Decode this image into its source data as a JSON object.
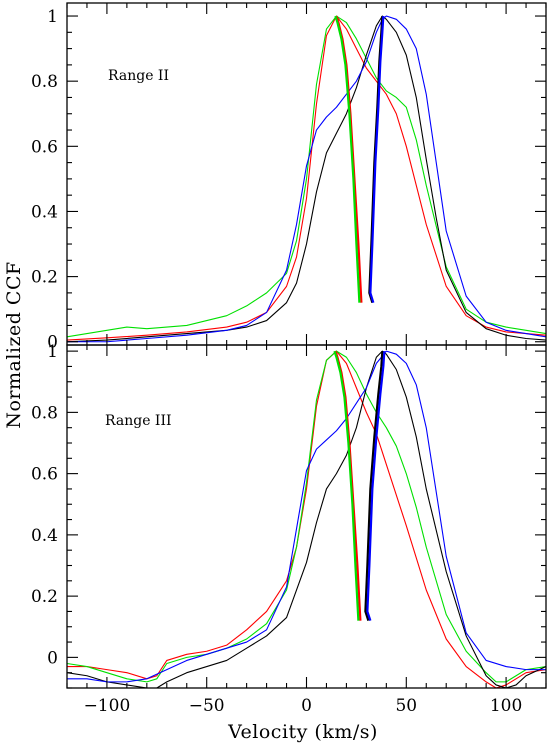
{
  "figure": {
    "xlabel": "Velocity (km/s)",
    "ylabel": "Normalized CCF"
  },
  "chart_data": [
    {
      "type": "line",
      "annotation": "Range II",
      "xlim": [
        -120,
        120
      ],
      "ylim": [
        -0.01,
        1.04
      ],
      "xticks": [
        -100,
        -50,
        0,
        50,
        100
      ],
      "xtick_labels": [
        "−100",
        "−50",
        "0",
        "50",
        "100"
      ],
      "yticks": [
        0,
        0.2,
        0.4,
        0.6,
        0.8,
        1
      ],
      "ytick_labels": [
        "0",
        "0.2",
        "0.4",
        "0.6",
        "0.8",
        "1"
      ],
      "colors": {
        "red": "#ff0000",
        "green": "#00e000",
        "black": "#000000",
        "blue": "#0000ff"
      },
      "series": [
        {
          "color": "red",
          "kind": "ccf",
          "x": [
            -120,
            -100,
            -80,
            -60,
            -40,
            -30,
            -20,
            -10,
            -5,
            0,
            5,
            10,
            15,
            20,
            25,
            30,
            35,
            40,
            45,
            50,
            55,
            60,
            70,
            80,
            90,
            100,
            110,
            120
          ],
          "y": [
            0.005,
            0.012,
            0.02,
            0.03,
            0.045,
            0.06,
            0.09,
            0.17,
            0.26,
            0.44,
            0.73,
            0.94,
            1.0,
            0.96,
            0.9,
            0.84,
            0.8,
            0.76,
            0.7,
            0.6,
            0.48,
            0.36,
            0.17,
            0.08,
            0.045,
            0.03,
            0.025,
            0.02
          ]
        },
        {
          "color": "green",
          "kind": "ccf",
          "x": [
            -120,
            -100,
            -90,
            -80,
            -60,
            -40,
            -30,
            -20,
            -10,
            -5,
            0,
            5,
            10,
            15,
            20,
            25,
            30,
            35,
            40,
            45,
            50,
            55,
            60,
            70,
            80,
            90,
            100,
            110,
            120
          ],
          "y": [
            0.015,
            0.035,
            0.045,
            0.04,
            0.05,
            0.08,
            0.11,
            0.15,
            0.21,
            0.31,
            0.5,
            0.79,
            0.96,
            1.0,
            0.98,
            0.93,
            0.87,
            0.81,
            0.77,
            0.75,
            0.72,
            0.62,
            0.48,
            0.23,
            0.1,
            0.06,
            0.045,
            0.035,
            0.025
          ]
        },
        {
          "color": "black",
          "kind": "ccf",
          "x": [
            -120,
            -100,
            -80,
            -60,
            -40,
            -30,
            -20,
            -10,
            -5,
            0,
            5,
            10,
            15,
            20,
            25,
            30,
            35,
            38,
            40,
            45,
            50,
            55,
            60,
            65,
            70,
            80,
            90,
            100,
            110,
            120
          ],
          "y": [
            0.0,
            0.005,
            0.015,
            0.025,
            0.035,
            0.045,
            0.065,
            0.12,
            0.18,
            0.3,
            0.46,
            0.58,
            0.64,
            0.7,
            0.78,
            0.88,
            0.97,
            1.0,
            0.99,
            0.95,
            0.88,
            0.75,
            0.56,
            0.38,
            0.22,
            0.09,
            0.04,
            0.02,
            0.01,
            0.005
          ]
        },
        {
          "color": "blue",
          "kind": "ccf",
          "x": [
            -120,
            -100,
            -80,
            -60,
            -40,
            -30,
            -20,
            -10,
            -5,
            0,
            5,
            10,
            15,
            20,
            25,
            30,
            35,
            38,
            40,
            45,
            50,
            55,
            60,
            65,
            70,
            80,
            90,
            100,
            110,
            120
          ],
          "y": [
            0.0,
            0.0,
            0.01,
            0.02,
            0.035,
            0.05,
            0.09,
            0.22,
            0.36,
            0.54,
            0.65,
            0.69,
            0.72,
            0.76,
            0.8,
            0.86,
            0.95,
            0.99,
            1.0,
            0.99,
            0.96,
            0.9,
            0.76,
            0.55,
            0.34,
            0.14,
            0.06,
            0.035,
            0.025,
            0.015
          ]
        },
        {
          "color": "red",
          "kind": "bisector",
          "x": [
            27.5,
            26,
            24,
            22,
            20,
            18,
            16,
            15
          ],
          "y": [
            0.12,
            0.3,
            0.5,
            0.7,
            0.85,
            0.93,
            0.98,
            1.0
          ]
        },
        {
          "color": "green",
          "kind": "bisector",
          "x": [
            26.5,
            25,
            23.5,
            21.5,
            19.5,
            17.5,
            15.5,
            14.5
          ],
          "y": [
            0.12,
            0.3,
            0.5,
            0.7,
            0.85,
            0.93,
            0.98,
            1.0
          ]
        },
        {
          "color": "black",
          "kind": "bisector",
          "x": [
            33,
            31.5,
            32.5,
            34,
            35.5,
            36.5,
            37.5,
            38
          ],
          "y": [
            0.12,
            0.15,
            0.3,
            0.55,
            0.72,
            0.86,
            0.95,
            1.0
          ]
        },
        {
          "color": "blue",
          "kind": "bisector",
          "x": [
            33.5,
            32,
            33,
            34.5,
            36,
            37,
            38,
            38.5
          ],
          "y": [
            0.12,
            0.15,
            0.3,
            0.55,
            0.72,
            0.86,
            0.95,
            1.0
          ]
        }
      ]
    },
    {
      "type": "line",
      "annotation": "Range III",
      "xlim": [
        -120,
        120
      ],
      "ylim": [
        -0.1,
        1.02
      ],
      "xticks": [
        -100,
        -50,
        0,
        50,
        100
      ],
      "xtick_labels": [
        "−100",
        "−50",
        "0",
        "50",
        "100"
      ],
      "yticks": [
        0,
        0.2,
        0.4,
        0.6,
        0.8,
        1
      ],
      "ytick_labels": [
        "0",
        "0.2",
        "0.4",
        "0.6",
        "0.8",
        "1"
      ],
      "colors": {
        "red": "#ff0000",
        "green": "#00e000",
        "black": "#000000",
        "blue": "#0000ff"
      },
      "series": [
        {
          "color": "red",
          "kind": "ccf",
          "x": [
            -120,
            -110,
            -100,
            -90,
            -80,
            -75,
            -70,
            -60,
            -50,
            -40,
            -30,
            -20,
            -10,
            -5,
            0,
            5,
            10,
            15,
            20,
            25,
            30,
            35,
            40,
            50,
            60,
            70,
            80,
            90,
            95,
            100,
            105,
            110,
            120
          ],
          "y": [
            -0.03,
            -0.03,
            -0.04,
            -0.05,
            -0.07,
            -0.06,
            -0.01,
            0.01,
            0.02,
            0.04,
            0.09,
            0.15,
            0.25,
            0.36,
            0.55,
            0.82,
            0.97,
            1.0,
            0.96,
            0.88,
            0.8,
            0.73,
            0.63,
            0.43,
            0.22,
            0.06,
            -0.03,
            -0.08,
            -0.1,
            -0.09,
            -0.07,
            -0.05,
            -0.04
          ]
        },
        {
          "color": "green",
          "kind": "ccf",
          "x": [
            -120,
            -110,
            -100,
            -90,
            -80,
            -75,
            -70,
            -60,
            -50,
            -40,
            -30,
            -20,
            -10,
            -5,
            0,
            5,
            10,
            15,
            20,
            25,
            30,
            35,
            40,
            45,
            50,
            55,
            60,
            70,
            80,
            90,
            95,
            100,
            105,
            110,
            120
          ],
          "y": [
            -0.02,
            -0.03,
            -0.05,
            -0.07,
            -0.08,
            -0.07,
            -0.02,
            0.0,
            0.01,
            0.03,
            0.06,
            0.11,
            0.22,
            0.36,
            0.57,
            0.84,
            0.97,
            1.0,
            0.98,
            0.93,
            0.86,
            0.8,
            0.75,
            0.69,
            0.6,
            0.49,
            0.36,
            0.14,
            0.02,
            -0.05,
            -0.08,
            -0.08,
            -0.06,
            -0.04,
            -0.03
          ]
        },
        {
          "color": "black",
          "kind": "ccf",
          "x": [
            -120,
            -110,
            -100,
            -90,
            -80,
            -75,
            -70,
            -60,
            -50,
            -40,
            -30,
            -20,
            -10,
            0,
            5,
            10,
            15,
            20,
            25,
            30,
            35,
            38,
            40,
            45,
            50,
            55,
            60,
            70,
            80,
            90,
            95,
            100,
            105,
            110,
            120
          ],
          "y": [
            -0.05,
            -0.06,
            -0.08,
            -0.09,
            -0.1,
            -0.1,
            -0.08,
            -0.05,
            -0.03,
            -0.01,
            0.03,
            0.07,
            0.13,
            0.31,
            0.44,
            0.55,
            0.6,
            0.66,
            0.75,
            0.88,
            0.98,
            1.0,
            0.99,
            0.94,
            0.85,
            0.72,
            0.55,
            0.28,
            0.07,
            -0.06,
            -0.09,
            -0.1,
            -0.09,
            -0.06,
            -0.03
          ]
        },
        {
          "color": "blue",
          "kind": "ccf",
          "x": [
            -120,
            -110,
            -100,
            -90,
            -80,
            -70,
            -60,
            -50,
            -40,
            -30,
            -20,
            -10,
            -5,
            0,
            5,
            10,
            15,
            20,
            25,
            30,
            35,
            40,
            45,
            50,
            55,
            60,
            70,
            80,
            90,
            100,
            110,
            120
          ],
          "y": [
            -0.07,
            -0.07,
            -0.08,
            -0.08,
            -0.07,
            -0.04,
            -0.01,
            0.01,
            0.03,
            0.05,
            0.09,
            0.23,
            0.42,
            0.61,
            0.68,
            0.71,
            0.74,
            0.78,
            0.83,
            0.88,
            0.96,
            1.0,
            0.99,
            0.96,
            0.89,
            0.75,
            0.33,
            0.08,
            -0.01,
            -0.03,
            -0.04,
            -0.04
          ]
        },
        {
          "color": "red",
          "kind": "bisector",
          "x": [
            27,
            25.5,
            23.5,
            21.5,
            19.5,
            17.5,
            15.5,
            14.5
          ],
          "y": [
            0.12,
            0.3,
            0.5,
            0.7,
            0.85,
            0.93,
            0.98,
            1.0
          ]
        },
        {
          "color": "green",
          "kind": "bisector",
          "x": [
            26,
            24.5,
            23,
            21,
            19,
            17,
            15,
            14
          ],
          "y": [
            0.12,
            0.3,
            0.5,
            0.7,
            0.85,
            0.93,
            0.98,
            1.0
          ]
        },
        {
          "color": "black",
          "kind": "bisector",
          "x": [
            31,
            29.5,
            30.5,
            32,
            34,
            36,
            37.5,
            38
          ],
          "y": [
            0.12,
            0.15,
            0.3,
            0.55,
            0.72,
            0.86,
            0.95,
            1.0
          ]
        },
        {
          "color": "blue",
          "kind": "bisector",
          "x": [
            32,
            30.5,
            31.5,
            33,
            35,
            37,
            38.5,
            39
          ],
          "y": [
            0.12,
            0.15,
            0.3,
            0.55,
            0.72,
            0.86,
            0.95,
            1.0
          ]
        }
      ]
    }
  ]
}
